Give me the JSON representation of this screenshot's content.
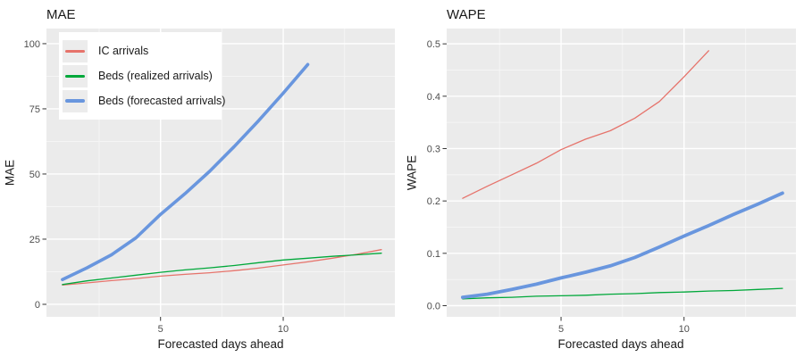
{
  "page": {
    "background": "#ffffff"
  },
  "palette": {
    "panel_bg": "#ebebeb",
    "grid_major": "#ffffff",
    "grid_minor": "#f5f5f5",
    "tick_mark": "#333333",
    "tick_text": "#4d4d4d",
    "title_text": "#1a1a1a"
  },
  "chart_data": [
    {
      "type": "line",
      "title": "MAE",
      "xlabel": "Forecasted days ahead",
      "ylabel": "MAE",
      "xlim": [
        0.35,
        14.55
      ],
      "ylim": [
        -4.8,
        105.8
      ],
      "grid": true,
      "panel_bg": "#ebebeb",
      "x_major_ticks": [
        5,
        10
      ],
      "x_tick_labels": [
        "5",
        "10"
      ],
      "x_minor_ticks": [
        2.5,
        7.5,
        12.5
      ],
      "y_major_ticks": [
        0,
        25,
        50,
        75,
        100
      ],
      "y_tick_labels": [
        "0",
        "25",
        "50",
        "75",
        "100"
      ],
      "y_minor_ticks": [
        12.5,
        37.5,
        62.5,
        87.5
      ],
      "legend_position": "top-left-inside",
      "legend": {
        "items": [
          {
            "label": "IC arrivals",
            "color": "#e6736b",
            "thickness": 3
          },
          {
            "label": "Beds (realized arrivals)",
            "color": "#00a83a",
            "thickness": 3
          },
          {
            "label": "Beds (forecasted arrivals)",
            "color": "#6996de",
            "thickness": 4
          }
        ]
      },
      "series": [
        {
          "name": "IC arrivals",
          "color": "#e6736b",
          "width": 1.3,
          "x": [
            1,
            2,
            3,
            4,
            5,
            6,
            7,
            8,
            9,
            10,
            11,
            12,
            13,
            14
          ],
          "y": [
            7.4,
            8.2,
            9.1,
            9.9,
            10.8,
            11.5,
            12.1,
            12.9,
            13.9,
            15.1,
            16.3,
            17.7,
            19.2,
            21.0
          ]
        },
        {
          "name": "Beds (realized arrivals)",
          "color": "#00a83a",
          "width": 1.3,
          "x": [
            1,
            2,
            3,
            4,
            5,
            6,
            7,
            8,
            9,
            10,
            11,
            12,
            13,
            14
          ],
          "y": [
            7.6,
            9.0,
            10.1,
            11.2,
            12.3,
            13.2,
            14.0,
            14.9,
            16.0,
            17.0,
            17.7,
            18.4,
            19.0,
            19.6
          ]
        },
        {
          "name": "Beds (forecasted arrivals)",
          "color": "#6996de",
          "width": 3.6,
          "x": [
            1,
            2,
            3,
            4,
            5,
            6,
            7,
            8,
            9,
            10,
            11
          ],
          "y": [
            9.5,
            14.0,
            19.0,
            25.5,
            34.5,
            42.5,
            51.0,
            60.5,
            70.5,
            81.0,
            92.0
          ]
        }
      ]
    },
    {
      "type": "line",
      "title": "WAPE",
      "xlabel": "Forecasted days ahead",
      "ylabel": "WAPE",
      "xlim": [
        0.35,
        14.55
      ],
      "ylim": [
        -0.0213,
        0.5292
      ],
      "grid": true,
      "panel_bg": "#ebebeb",
      "x_major_ticks": [
        5,
        10
      ],
      "x_tick_labels": [
        "5",
        "10"
      ],
      "x_minor_ticks": [
        2.5,
        7.5,
        12.5
      ],
      "y_major_ticks": [
        0.0,
        0.1,
        0.2,
        0.3,
        0.4,
        0.5
      ],
      "y_tick_labels": [
        "0.0",
        "0.1",
        "0.2",
        "0.3",
        "0.4",
        "0.5"
      ],
      "y_minor_ticks": [
        0.05,
        0.15,
        0.25,
        0.35,
        0.45
      ],
      "legend_position": "none",
      "series": [
        {
          "name": "IC arrivals",
          "color": "#e6736b",
          "width": 1.3,
          "x": [
            1,
            2,
            3,
            4,
            5,
            6,
            7,
            8,
            9,
            10,
            11
          ],
          "y": [
            0.205,
            0.228,
            0.25,
            0.272,
            0.298,
            0.318,
            0.334,
            0.358,
            0.39,
            0.437,
            0.487
          ]
        },
        {
          "name": "Beds (realized arrivals)",
          "color": "#00a83a",
          "width": 1.3,
          "x": [
            1,
            2,
            3,
            4,
            5,
            6,
            7,
            8,
            9,
            10,
            11,
            12,
            13,
            14
          ],
          "y": [
            0.013,
            0.015,
            0.016,
            0.018,
            0.019,
            0.02,
            0.022,
            0.023,
            0.025,
            0.026,
            0.028,
            0.029,
            0.031,
            0.033
          ]
        },
        {
          "name": "Beds (forecasted arrivals)",
          "color": "#6996de",
          "width": 3.8,
          "x": [
            1,
            2,
            3,
            4,
            5,
            6,
            7,
            8,
            9,
            10,
            11,
            12,
            13,
            14
          ],
          "y": [
            0.016,
            0.022,
            0.031,
            0.041,
            0.053,
            0.064,
            0.076,
            0.092,
            0.112,
            0.133,
            0.153,
            0.174,
            0.194,
            0.215
          ]
        }
      ]
    }
  ]
}
